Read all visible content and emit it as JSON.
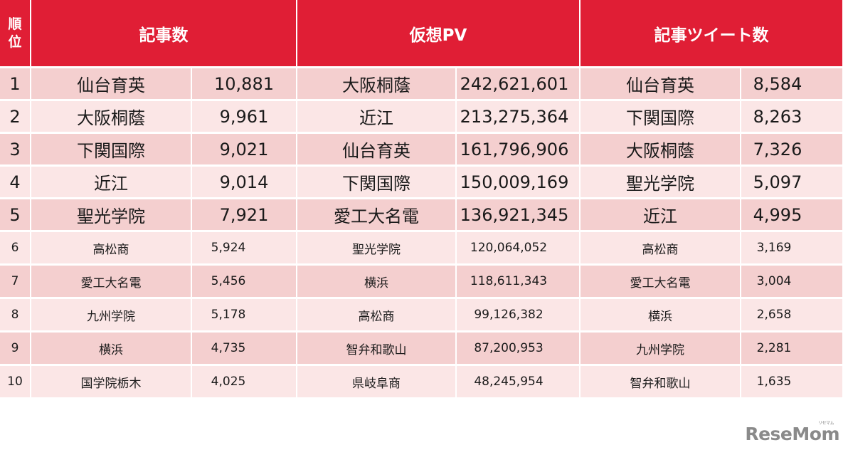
{
  "header": {
    "rank": "順\n位",
    "rank_line1": "順",
    "rank_line2": "位",
    "articles": "記事数",
    "virtual_pv": "仮想PV",
    "tweets": "記事ツイート数"
  },
  "colors": {
    "header_bg": "#e01e35",
    "row_odd": "#f4cfcf",
    "row_even": "#fbe6e6",
    "logo": "#8a8a8a"
  },
  "rows": [
    {
      "rank": "1",
      "a_school": "仙台育英",
      "a_value": "10,881",
      "p_school": "大阪桐蔭",
      "p_value": "242,621,601",
      "t_school": "仙台育英",
      "t_value": "8,584"
    },
    {
      "rank": "2",
      "a_school": "大阪桐蔭",
      "a_value": "9,961",
      "p_school": "近江",
      "p_value": "213,275,364",
      "t_school": "下関国際",
      "t_value": "8,263"
    },
    {
      "rank": "3",
      "a_school": "下関国際",
      "a_value": "9,021",
      "p_school": "仙台育英",
      "p_value": "161,796,906",
      "t_school": "大阪桐蔭",
      "t_value": "7,326"
    },
    {
      "rank": "4",
      "a_school": "近江",
      "a_value": "9,014",
      "p_school": "下関国際",
      "p_value": "150,009,169",
      "t_school": "聖光学院",
      "t_value": "5,097"
    },
    {
      "rank": "5",
      "a_school": "聖光学院",
      "a_value": "7,921",
      "p_school": "愛工大名電",
      "p_value": "136,921,345",
      "t_school": "近江",
      "t_value": "4,995"
    },
    {
      "rank": "6",
      "a_school": "高松商",
      "a_value": "5,924",
      "p_school": "聖光学院",
      "p_value": "120,064,052",
      "t_school": "高松商",
      "t_value": "3,169"
    },
    {
      "rank": "7",
      "a_school": "愛工大名電",
      "a_value": "5,456",
      "p_school": "横浜",
      "p_value": "118,611,343",
      "t_school": "愛工大名電",
      "t_value": "3,004"
    },
    {
      "rank": "8",
      "a_school": "九州学院",
      "a_value": "5,178",
      "p_school": "高松商",
      "p_value": "99,126,382",
      "t_school": "横浜",
      "t_value": "2,658"
    },
    {
      "rank": "9",
      "a_school": "横浜",
      "a_value": "4,735",
      "p_school": "智弁和歌山",
      "p_value": "87,200,953",
      "t_school": "九州学院",
      "t_value": "2,281"
    },
    {
      "rank": "10",
      "a_school": "国学院栃木",
      "a_value": "4,025",
      "p_school": "県岐阜商",
      "p_value": "48,245,954",
      "t_school": "智弁和歌山",
      "t_value": "1,635"
    }
  ],
  "logo": {
    "text": "ReseMom",
    "ruby": "リセマム"
  }
}
